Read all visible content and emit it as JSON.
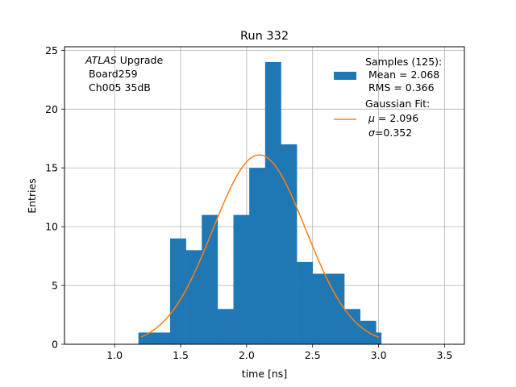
{
  "chart_data": {
    "type": "bar",
    "title": "Run 332",
    "xlabel": "time [ns]",
    "ylabel": "Entries",
    "xlim": [
      0.62,
      3.65
    ],
    "ylim": [
      0,
      25.3
    ],
    "grid": true,
    "x_ticks": [
      1.0,
      1.5,
      2.0,
      2.5,
      3.0,
      3.5
    ],
    "x_tick_labels": [
      "1.0",
      "1.5",
      "2.0",
      "2.5",
      "3.0",
      "3.5"
    ],
    "y_ticks": [
      0,
      5,
      10,
      15,
      20,
      25
    ],
    "y_tick_labels": [
      "0",
      "5",
      "10",
      "15",
      "20",
      "25"
    ],
    "bin_edges": [
      1.18,
      1.3,
      1.42,
      1.54,
      1.66,
      1.78,
      1.9,
      2.02,
      2.14,
      2.26,
      2.38,
      2.5,
      2.62,
      2.74,
      2.86,
      2.98,
      3.02
    ],
    "values": [
      1,
      1,
      9,
      8,
      11,
      3,
      11,
      15,
      24,
      17,
      7,
      6,
      6,
      3,
      2,
      1
    ],
    "fit": {
      "mu": 2.096,
      "sigma": 0.352,
      "amplitude": 16.1,
      "x_range": [
        1.2,
        3.0
      ]
    },
    "bar_color": "#1f77b4",
    "fit_color": "#ff7f0e",
    "annotation": {
      "italic": "ATLAS",
      "rest": " Upgrade",
      "line2": " Board259",
      "line3": " Ch005 35dB"
    },
    "legend": {
      "position": "top-right",
      "samples": {
        "line1": "Samples (125):",
        "line2": " Mean = 2.068",
        "line3": " RMS = 0.366"
      },
      "fit": {
        "line1": "Gaussian Fit:",
        "mu_symbol": "μ",
        "mu_value": " = 2.096",
        "sigma_symbol": "σ",
        "sigma_value": "=0.352"
      }
    }
  }
}
